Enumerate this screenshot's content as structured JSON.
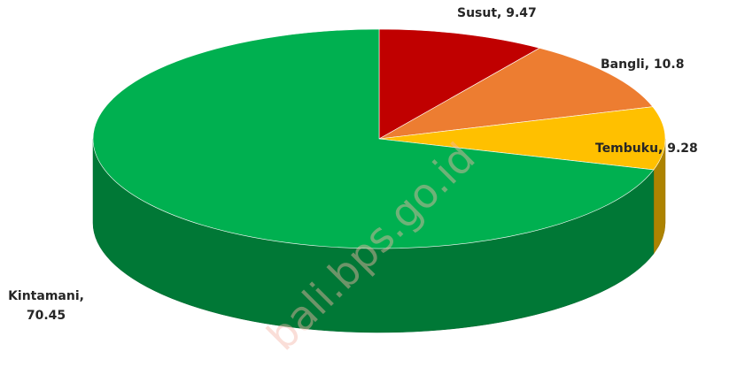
{
  "chart_data": {
    "type": "pie3d",
    "categories": [
      "Susut",
      "Bangli",
      "Tembuku",
      "Kintamani"
    ],
    "values": [
      9.47,
      10.8,
      9.28,
      70.45
    ],
    "value_labels": [
      "Susut, 9.47",
      "Bangli, 10.8",
      "Tembuku, 9.28",
      "Kintamani, 70.45"
    ],
    "colors": [
      "#c00000",
      "#ed7d31",
      "#ffc000",
      "#00b050"
    ],
    "watermark": "bali.bps.go.id"
  }
}
